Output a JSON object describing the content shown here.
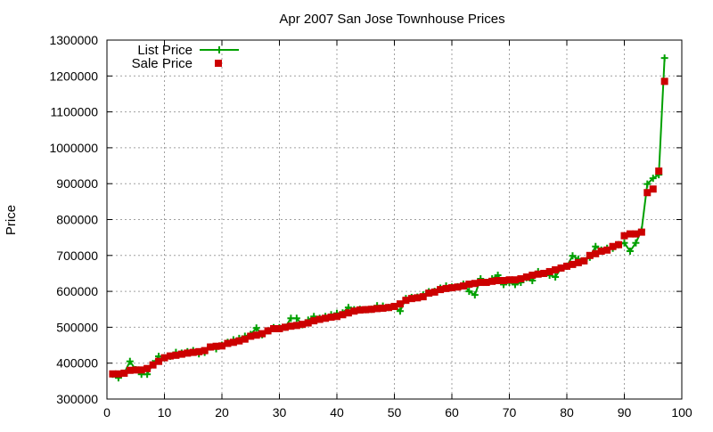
{
  "chart_data": {
    "type": "line",
    "title": "Apr 2007 San Jose Townhouse Prices",
    "xlabel": "",
    "ylabel": "Price",
    "xlim": [
      0,
      100
    ],
    "ylim": [
      300000,
      1300000
    ],
    "xticks": [
      0,
      10,
      20,
      30,
      40,
      50,
      60,
      70,
      80,
      90,
      100
    ],
    "yticks": [
      300000,
      400000,
      500000,
      600000,
      700000,
      800000,
      900000,
      1000000,
      1100000,
      1200000,
      1300000
    ],
    "grid": true,
    "legend_position": "top-left",
    "series": [
      {
        "name": "List Price",
        "style": "lines+crosses",
        "color": "#00a000",
        "x": [
          1,
          2,
          3,
          4,
          5,
          6,
          7,
          8,
          9,
          10,
          11,
          12,
          13,
          14,
          15,
          16,
          17,
          18,
          19,
          20,
          21,
          22,
          23,
          24,
          25,
          26,
          27,
          28,
          29,
          30,
          31,
          32,
          33,
          34,
          35,
          36,
          37,
          38,
          39,
          40,
          41,
          42,
          43,
          44,
          45,
          46,
          47,
          48,
          49,
          50,
          51,
          52,
          53,
          54,
          55,
          56,
          57,
          58,
          59,
          60,
          61,
          62,
          63,
          64,
          65,
          66,
          67,
          68,
          69,
          70,
          71,
          72,
          73,
          74,
          75,
          76,
          77,
          78,
          79,
          80,
          81,
          82,
          83,
          84,
          85,
          86,
          87,
          88,
          89,
          90,
          91,
          92,
          93,
          94,
          95,
          96,
          97
        ],
        "values": [
          369000,
          359000,
          372000,
          405000,
          382000,
          369000,
          369000,
          399000,
          419000,
          415000,
          419000,
          430000,
          428000,
          432000,
          435000,
          426000,
          430000,
          445000,
          440000,
          450000,
          458000,
          465000,
          469000,
          475000,
          480000,
          498000,
          479000,
          490000,
          499000,
          499000,
          500000,
          525000,
          525000,
          507000,
          520000,
          530000,
          525000,
          530000,
          535000,
          539000,
          540000,
          555000,
          549000,
          550000,
          549000,
          550000,
          560000,
          559000,
          555000,
          558000,
          545000,
          580000,
          583000,
          584000,
          590000,
          599000,
          600000,
          609000,
          615000,
          612000,
          613000,
          620000,
          600000,
          590000,
          635000,
          625000,
          635000,
          645000,
          619000,
          625000,
          619000,
          625000,
          638000,
          630000,
          655000,
          650000,
          645000,
          640000,
          665000,
          670000,
          699000,
          690000,
          685000,
          695000,
          725000,
          715000,
          720000,
          720000,
          730000,
          735000,
          712000,
          735000,
          770000,
          899000,
          915000,
          925000,
          1250000
        ]
      },
      {
        "name": "Sale Price",
        "style": "squares",
        "color": "#cc0000",
        "x": [
          1,
          2,
          3,
          4,
          5,
          6,
          7,
          8,
          9,
          10,
          11,
          12,
          13,
          14,
          15,
          16,
          17,
          18,
          19,
          20,
          21,
          22,
          23,
          24,
          25,
          26,
          27,
          28,
          29,
          30,
          31,
          32,
          33,
          34,
          35,
          36,
          37,
          38,
          39,
          40,
          41,
          42,
          43,
          44,
          45,
          46,
          47,
          48,
          49,
          50,
          51,
          52,
          53,
          54,
          55,
          56,
          57,
          58,
          59,
          60,
          61,
          62,
          63,
          64,
          65,
          66,
          67,
          68,
          69,
          70,
          71,
          72,
          73,
          74,
          75,
          76,
          77,
          78,
          79,
          80,
          81,
          82,
          83,
          84,
          85,
          86,
          87,
          88,
          89,
          90,
          91,
          92,
          93,
          94,
          95,
          96,
          97
        ],
        "values": [
          370000,
          370000,
          372000,
          380000,
          381000,
          381000,
          385000,
          395000,
          405000,
          415000,
          420000,
          422000,
          425000,
          428000,
          430000,
          432000,
          435000,
          445000,
          447000,
          448000,
          455000,
          458000,
          462000,
          467000,
          475000,
          478000,
          482000,
          490000,
          496000,
          496000,
          500000,
          503000,
          505000,
          508000,
          512000,
          518000,
          522000,
          525000,
          528000,
          530000,
          535000,
          540000,
          545000,
          548000,
          549000,
          550000,
          552000,
          553000,
          555000,
          558000,
          565000,
          575000,
          580000,
          582000,
          585000,
          595000,
          598000,
          605000,
          608000,
          610000,
          612000,
          615000,
          620000,
          622000,
          625000,
          625000,
          628000,
          630000,
          630000,
          632000,
          632000,
          635000,
          640000,
          645000,
          648000,
          650000,
          655000,
          660000,
          665000,
          670000,
          675000,
          680000,
          685000,
          700000,
          705000,
          712000,
          715000,
          725000,
          730000,
          755000,
          760000,
          760000,
          765000,
          875000,
          885000,
          935000,
          1185000
        ]
      }
    ]
  }
}
